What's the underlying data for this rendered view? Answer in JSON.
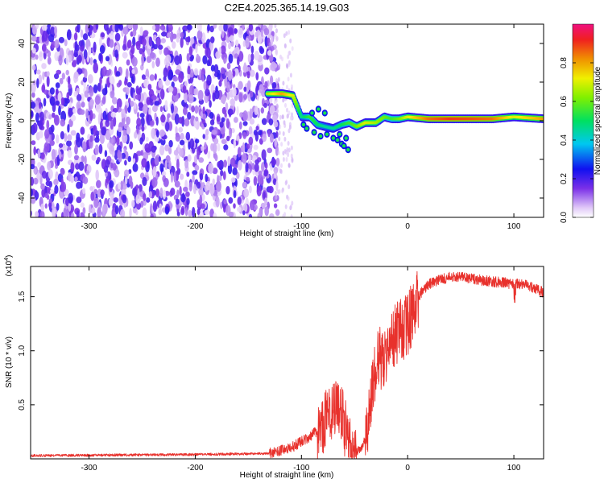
{
  "title": "C2E4.2025.365.14.19.G03",
  "chart_data": [
    {
      "type": "heatmap",
      "name": "spectrogram",
      "xlabel": "Height of straight line (km)",
      "ylabel": "Frequency (Hz)",
      "xlim": [
        -355,
        128
      ],
      "ylim": [
        -50,
        50
      ],
      "xticks": [
        -300,
        -200,
        -100,
        0,
        100
      ],
      "yticks": [
        -40,
        -20,
        0,
        20,
        40
      ],
      "colorbar": {
        "label": "Normalized spectral amplitude",
        "range": [
          0,
          1
        ],
        "ticks": [
          0.0,
          0.2,
          0.4,
          0.6,
          0.8
        ],
        "tick_labels": [
          "0.0",
          "0.2",
          "0.4",
          "0.6",
          "0.8"
        ]
      },
      "features": {
        "noise_region_x": [
          -355,
          -122
        ],
        "noise_amplitude": 0.1,
        "signal_track": {
          "x": [
            -132,
            -118,
            -108,
            -100,
            -92,
            -85,
            -78,
            -70,
            -62,
            -55,
            -48,
            -40,
            -30,
            -22,
            -15,
            -8,
            0,
            20,
            40,
            60,
            80,
            100,
            128
          ],
          "y": [
            14,
            14,
            13,
            2,
            2,
            -2,
            -3,
            -4,
            -2,
            -1,
            -3,
            -1,
            -1,
            2,
            1,
            1,
            2,
            1,
            1,
            1,
            1,
            2,
            1
          ],
          "amplitude": [
            0.65,
            0.8,
            0.7,
            0.45,
            0.55,
            0.5,
            0.45,
            0.45,
            0.5,
            0.55,
            0.6,
            0.7,
            0.65,
            0.6,
            0.55,
            0.6,
            0.7,
            0.85,
            0.9,
            0.88,
            0.85,
            0.7,
            0.8
          ]
        }
      }
    },
    {
      "type": "line",
      "name": "snr",
      "xlabel": "Height of straight line (km)",
      "ylabel": "SNR (10 * v/v)",
      "y_multiplier": "(x10^4)",
      "y_multiplier_base": "(x10",
      "y_multiplier_exp": "4",
      "y_multiplier_close": ")",
      "xlim": [
        -355,
        128
      ],
      "ylim": [
        0,
        17800
      ],
      "xticks": [
        -300,
        -200,
        -100,
        0,
        100
      ],
      "yticks": [
        5000,
        10000,
        15000
      ],
      "ytick_labels": [
        "0.5",
        "1.0",
        "1.5"
      ],
      "color": "#e8312c",
      "series_keypoints": {
        "x": [
          -355,
          -200,
          -130,
          -110,
          -100,
          -90,
          -80,
          -72,
          -66,
          -62,
          -58,
          -55,
          -52,
          -48,
          -44,
          -40,
          -36,
          -32,
          -28,
          -24,
          -20,
          -15,
          -10,
          -5,
          0,
          5,
          10,
          20,
          30,
          40,
          50,
          60,
          70,
          80,
          90,
          100,
          110,
          120,
          128
        ],
        "y": [
          300,
          400,
          500,
          1000,
          1600,
          2200,
          3000,
          4500,
          5200,
          4000,
          2500,
          1500,
          900,
          700,
          900,
          1800,
          4000,
          7500,
          9000,
          9500,
          10000,
          11000,
          11500,
          12000,
          12500,
          13500,
          15000,
          16200,
          16600,
          16800,
          16900,
          16700,
          16500,
          16400,
          16300,
          16200,
          16100,
          15700,
          15400
        ]
      }
    }
  ]
}
